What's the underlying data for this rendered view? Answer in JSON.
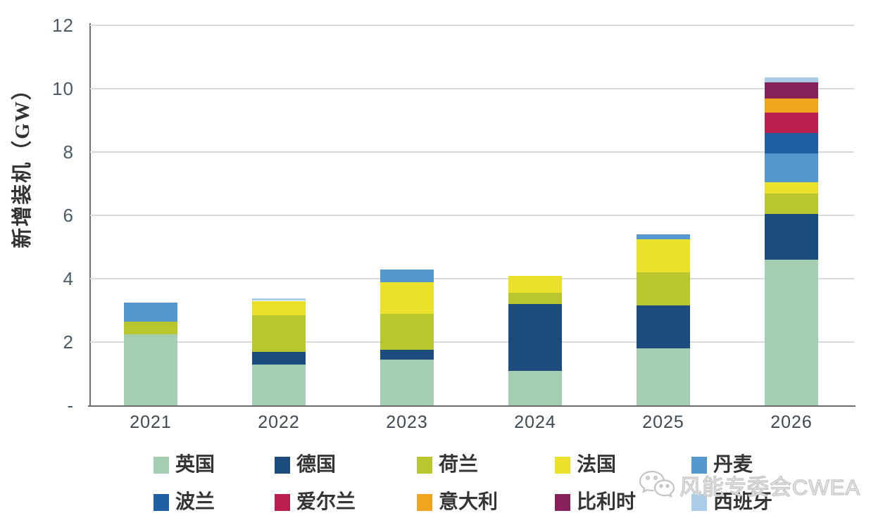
{
  "chart_data": {
    "type": "bar",
    "stacked": true,
    "title": "",
    "ylabel": "新增装机（GW）",
    "xlabel": "",
    "ylim": [
      0,
      12
    ],
    "grid": true,
    "legend_position": "bottom",
    "categories": [
      "2021",
      "2022",
      "2023",
      "2024",
      "2025",
      "2026"
    ],
    "ytick_values": [
      12,
      10,
      8,
      6,
      4,
      2,
      0
    ],
    "ytick_labels": [
      "12",
      "10",
      "8",
      "6",
      "4",
      "2",
      "-"
    ],
    "series": [
      {
        "id": "uk",
        "name": "英国",
        "color": "#a5cdb2",
        "values": [
          2.25,
          1.3,
          1.45,
          1.1,
          1.8,
          4.6
        ]
      },
      {
        "id": "de",
        "name": "德国",
        "color": "#1c4b7e",
        "values": [
          0,
          0.4,
          0.3,
          2.1,
          1.35,
          1.45
        ]
      },
      {
        "id": "nl",
        "name": "荷兰",
        "color": "#b9c72e",
        "values": [
          0.4,
          1.15,
          1.15,
          0.35,
          1.05,
          0.65
        ]
      },
      {
        "id": "fr",
        "name": "法国",
        "color": "#ebe12a",
        "values": [
          0,
          0.45,
          1.0,
          0.55,
          1.05,
          0.35
        ]
      },
      {
        "id": "dk",
        "name": "丹麦",
        "color": "#5598cf",
        "values": [
          0.6,
          0,
          0.4,
          0,
          0.15,
          0.9
        ]
      },
      {
        "id": "pl",
        "name": "波兰",
        "color": "#1f5fa2",
        "values": [
          0,
          0,
          0,
          0,
          0,
          0.65
        ]
      },
      {
        "id": "ie",
        "name": "爱尔兰",
        "color": "#b81f4d",
        "values": [
          0,
          0,
          0,
          0,
          0,
          0.65
        ]
      },
      {
        "id": "it",
        "name": "意大利",
        "color": "#f0a51e",
        "values": [
          0,
          0,
          0,
          0,
          0,
          0.45
        ]
      },
      {
        "id": "be",
        "name": "比利时",
        "color": "#862058",
        "values": [
          0,
          0,
          0,
          0,
          0,
          0.5
        ]
      },
      {
        "id": "es",
        "name": "西班牙",
        "color": "#a9cce8",
        "values": [
          0,
          0.07,
          0,
          0,
          0,
          0.15
        ]
      }
    ]
  },
  "watermark": {
    "text": "风能专委会CWEA",
    "icon": "wechat-icon"
  }
}
